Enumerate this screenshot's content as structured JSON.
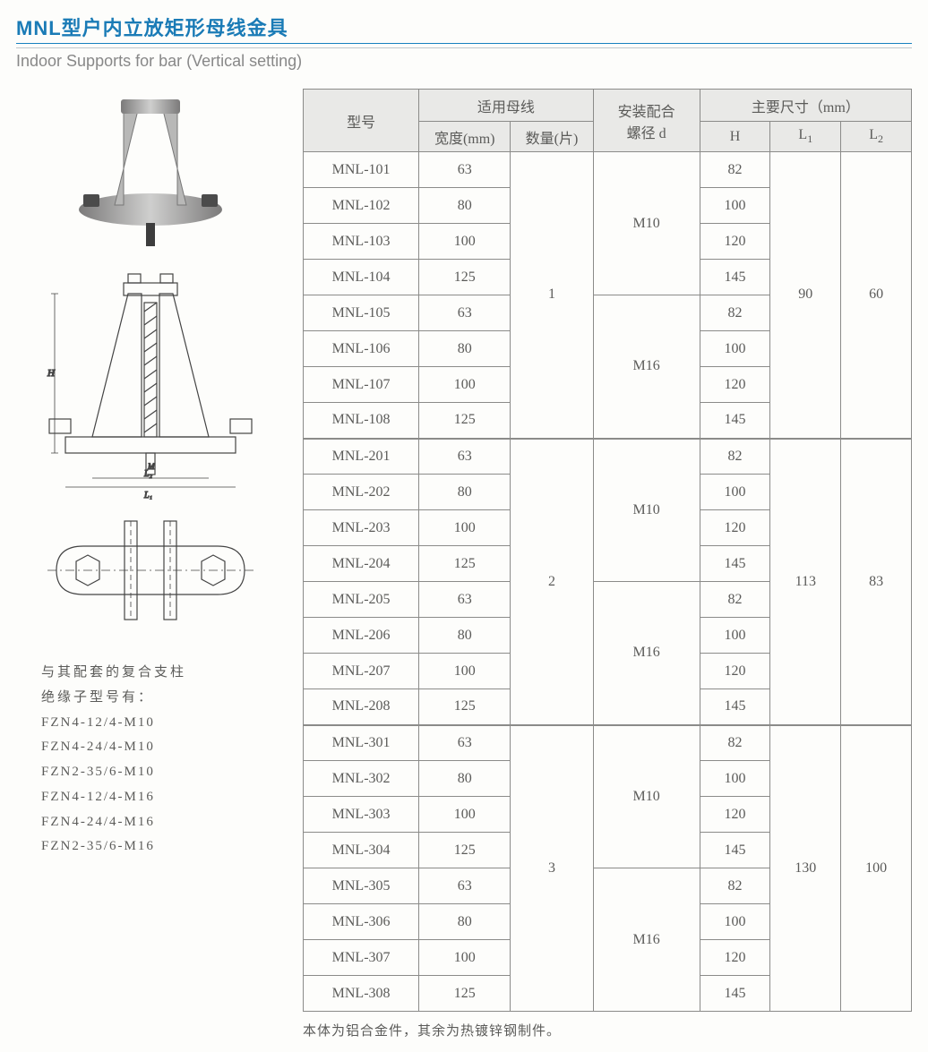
{
  "title_cn": "MNL型户内立放矩形母线金具",
  "title_en": "Indoor Supports for bar (Vertical setting)",
  "note_header1": "与其配套的复合支柱",
  "note_header2": "绝缘子型号有：",
  "insulator_models": [
    "FZN4-12/4-M10",
    "FZN4-24/4-M10",
    "FZN2-35/6-M10",
    "FZN4-12/4-M16",
    "FZN4-24/4-M16",
    "FZN2-35/6-M16"
  ],
  "footnote": "本体为铝合金件，其余为热镀锌钢制件。",
  "table": {
    "headers": {
      "model": "型号",
      "busbar": "适用母线",
      "width": "宽度(mm)",
      "qty": "数量(片)",
      "bolt": "安装配合\n螺径 d",
      "dims": "主要尺寸（mm）",
      "H": "H",
      "L1": "L",
      "L1sub": "1",
      "L2": "L",
      "L2sub": "2"
    },
    "groups": [
      {
        "qty": "1",
        "L1": "90",
        "L2": "60",
        "subs": [
          {
            "bolt": "M10",
            "rows": [
              {
                "model": "MNL-101",
                "w": "63",
                "H": "82"
              },
              {
                "model": "MNL-102",
                "w": "80",
                "H": "100"
              },
              {
                "model": "MNL-103",
                "w": "100",
                "H": "120"
              },
              {
                "model": "MNL-104",
                "w": "125",
                "H": "145"
              }
            ]
          },
          {
            "bolt": "M16",
            "rows": [
              {
                "model": "MNL-105",
                "w": "63",
                "H": "82"
              },
              {
                "model": "MNL-106",
                "w": "80",
                "H": "100"
              },
              {
                "model": "MNL-107",
                "w": "100",
                "H": "120"
              },
              {
                "model": "MNL-108",
                "w": "125",
                "H": "145"
              }
            ]
          }
        ]
      },
      {
        "qty": "2",
        "L1": "113",
        "L2": "83",
        "subs": [
          {
            "bolt": "M10",
            "rows": [
              {
                "model": "MNL-201",
                "w": "63",
                "H": "82"
              },
              {
                "model": "MNL-202",
                "w": "80",
                "H": "100"
              },
              {
                "model": "MNL-203",
                "w": "100",
                "H": "120"
              },
              {
                "model": "MNL-204",
                "w": "125",
                "H": "145"
              }
            ]
          },
          {
            "bolt": "M16",
            "rows": [
              {
                "model": "MNL-205",
                "w": "63",
                "H": "82"
              },
              {
                "model": "MNL-206",
                "w": "80",
                "H": "100"
              },
              {
                "model": "MNL-207",
                "w": "100",
                "H": "120"
              },
              {
                "model": "MNL-208",
                "w": "125",
                "H": "145"
              }
            ]
          }
        ]
      },
      {
        "qty": "3",
        "L1": "130",
        "L2": "100",
        "subs": [
          {
            "bolt": "M10",
            "rows": [
              {
                "model": "MNL-301",
                "w": "63",
                "H": "82"
              },
              {
                "model": "MNL-302",
                "w": "80",
                "H": "100"
              },
              {
                "model": "MNL-303",
                "w": "100",
                "H": "120"
              },
              {
                "model": "MNL-304",
                "w": "125",
                "H": "145"
              }
            ]
          },
          {
            "bolt": "M16",
            "rows": [
              {
                "model": "MNL-305",
                "w": "63",
                "H": "82"
              },
              {
                "model": "MNL-306",
                "w": "80",
                "H": "100"
              },
              {
                "model": "MNL-307",
                "w": "100",
                "H": "120"
              },
              {
                "model": "MNL-308",
                "w": "125",
                "H": "145"
              }
            ]
          }
        ]
      }
    ]
  },
  "colors": {
    "title": "#1a7bb6",
    "rule1": "#1881bf",
    "rule2": "#bfc6ca",
    "cell_border": "#8b8b89",
    "header_bg": "#e9e9e7",
    "text": "#5b5b59"
  }
}
